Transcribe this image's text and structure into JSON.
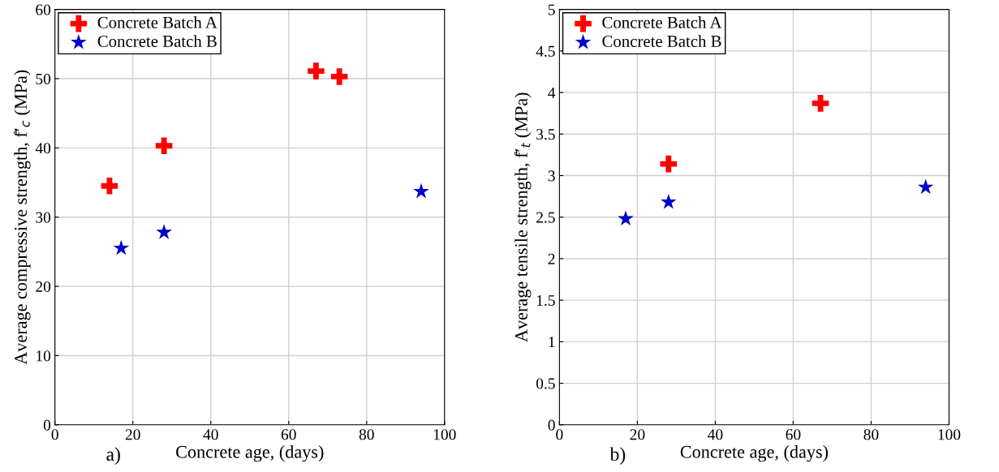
{
  "chart_data": [
    {
      "type": "scatter",
      "xlabel": "Concrete age, (days)",
      "ylabel": "Average compressive strength, f̄′$_{c}$ (MPa)",
      "xlim": [
        0,
        100
      ],
      "xticks": [
        0,
        20,
        40,
        60,
        80,
        100
      ],
      "ylim": [
        0,
        60
      ],
      "yticks": [
        0,
        10,
        20,
        30,
        40,
        50,
        60
      ],
      "grid": true,
      "legend": "top left",
      "annotations": [
        "a)"
      ],
      "series": [
        {
          "name": "Concrete Batch A",
          "color": "#ff0000",
          "marker": "cross",
          "x": [
            14,
            28,
            67,
            73
          ],
          "values": [
            34.5,
            40.3,
            51.1,
            50.3
          ]
        },
        {
          "name": "Concrete Batch B",
          "color": "#0000cc",
          "marker": "star",
          "x": [
            17,
            28,
            94
          ],
          "values": [
            25.5,
            27.8,
            33.7
          ]
        }
      ]
    },
    {
      "type": "scatter",
      "xlabel": "Concrete age, (days)",
      "ylabel": "Average tensile strength, f̄′$_{t}$ (MPa)",
      "xlim": [
        0,
        100
      ],
      "xticks": [
        0,
        20,
        40,
        60,
        80,
        100
      ],
      "ylim": [
        0,
        5
      ],
      "yticks": [
        0,
        0.5,
        1,
        1.5,
        2,
        2.5,
        3,
        3.5,
        4,
        4.5,
        5
      ],
      "grid": true,
      "legend": "top left",
      "annotations": [
        "b)"
      ],
      "series": [
        {
          "name": "Concrete Batch A",
          "color": "#ff0000",
          "marker": "cross",
          "x": [
            28,
            67
          ],
          "values": [
            3.14,
            3.87
          ]
        },
        {
          "name": "Concrete Batch B",
          "color": "#0000cc",
          "marker": "star",
          "x": [
            17,
            28,
            94
          ],
          "values": [
            2.48,
            2.68,
            2.86
          ]
        }
      ]
    }
  ]
}
